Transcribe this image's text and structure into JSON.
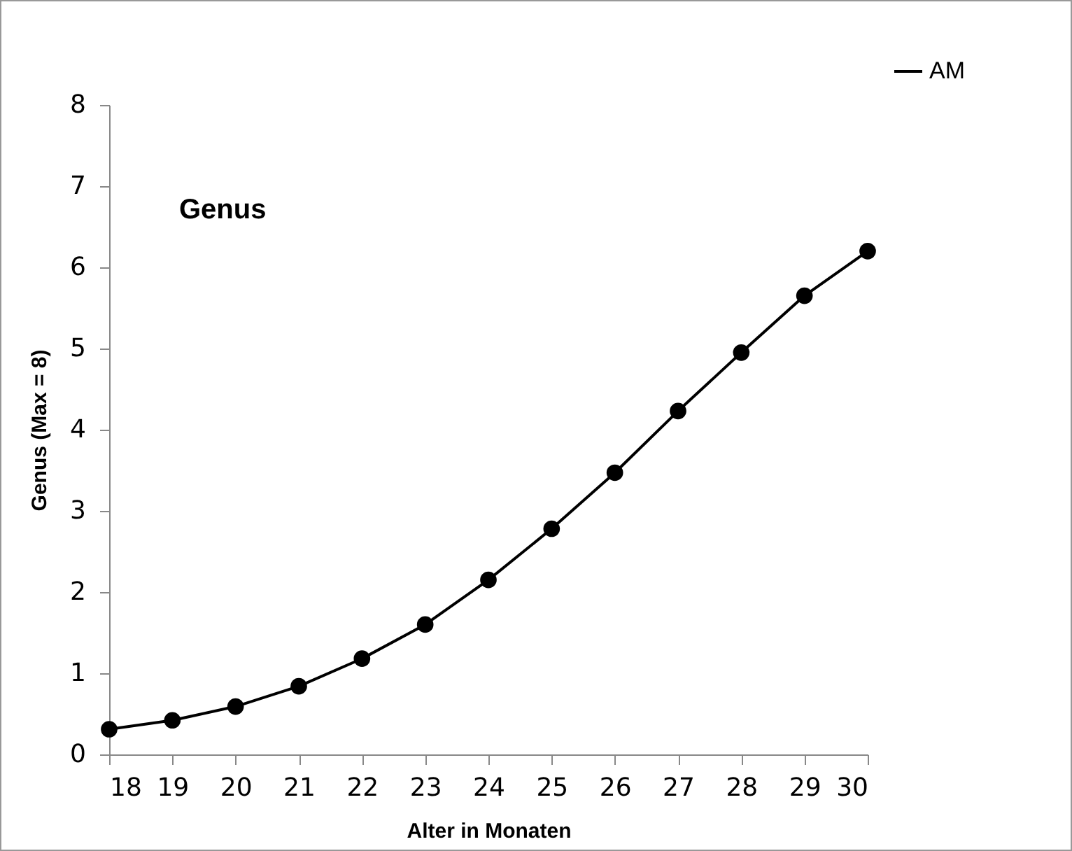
{
  "chart_data": {
    "type": "line",
    "xlabel": "Alter in Monaten",
    "ylabel": "Genus (Max = 8)",
    "annotations": [
      "Genus"
    ],
    "x": [
      18,
      19,
      20,
      21,
      22,
      23,
      24,
      25,
      26,
      27,
      28,
      29,
      30
    ],
    "series": [
      {
        "name": "AM",
        "color": "#000000",
        "values": [
          0.31,
          0.42,
          0.59,
          0.84,
          1.18,
          1.6,
          2.15,
          2.78,
          3.47,
          4.23,
          4.95,
          5.65,
          6.2
        ]
      }
    ],
    "xlim": [
      18,
      30
    ],
    "xticks": [
      18,
      19,
      20,
      21,
      22,
      23,
      24,
      25,
      26,
      27,
      28,
      29,
      30
    ],
    "ylim": [
      0,
      8
    ],
    "yticks": [
      0,
      1,
      2,
      3,
      4,
      5,
      6,
      7,
      8
    ],
    "grid": false,
    "legend": "top right",
    "marker": "circle",
    "line_style": "solid"
  }
}
